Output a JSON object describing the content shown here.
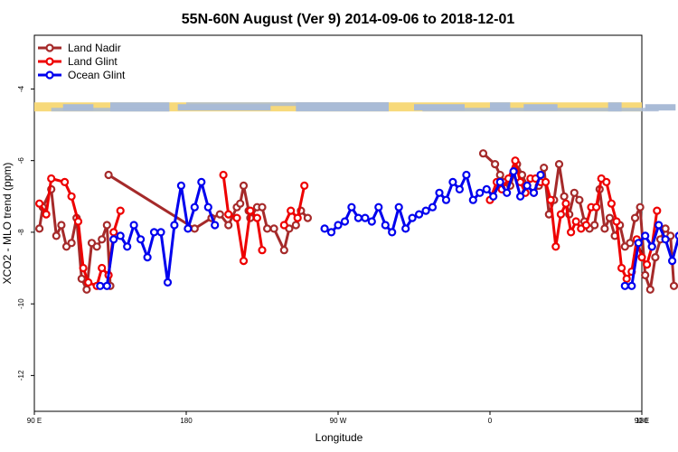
{
  "chart_data": {
    "type": "line",
    "title": "55N-60N August (Ver 9)   2014-09-06 to 2018-12-01",
    "xlabel": "Longitude",
    "ylabel": "XCO2 - MLO trend (ppm)",
    "xlim": [
      90,
      450
    ],
    "ylim": [
      -13,
      -2.5
    ],
    "x_ticks": [
      {
        "value": 90,
        "label": "90 E"
      },
      {
        "value": 180,
        "label": "180"
      },
      {
        "value": 270,
        "label": "90 W"
      },
      {
        "value": 360,
        "label": "0"
      },
      {
        "value": 450,
        "label": "90 E"
      },
      {
        "value": 540,
        "label": "180"
      }
    ],
    "y_ticks": [
      -4,
      -6,
      -8,
      -10,
      -12
    ],
    "legend_position": "top-left",
    "grid": false,
    "map_strip": {
      "y": -4.5,
      "land_color": "#f7d97a",
      "ocean_color": "#a9bbd6"
    },
    "series": [
      {
        "name": "Land Nadir",
        "color": "#a52a2a",
        "points": [
          [
            93,
            -7.9
          ],
          [
            95,
            -7.3
          ],
          [
            100,
            -6.8
          ],
          [
            103,
            -8.1
          ],
          [
            106,
            -7.8
          ],
          [
            109,
            -8.4
          ],
          [
            112,
            -8.3
          ],
          [
            115,
            -7.6
          ],
          [
            118,
            -9.3
          ],
          [
            121,
            -9.6
          ],
          [
            124,
            -8.3
          ],
          [
            127,
            -8.4
          ],
          [
            130,
            -8.2
          ],
          [
            133,
            -7.8
          ],
          [
            135,
            -9.5
          ],
          null,
          [
            134,
            -6.4
          ],
          [
            185,
            -7.9
          ],
          [
            195,
            -7.6
          ],
          [
            200,
            -7.5
          ],
          [
            205,
            -7.8
          ],
          [
            210,
            -7.3
          ],
          [
            212,
            -7.2
          ],
          [
            214,
            -6.7
          ],
          [
            217,
            -7.4
          ],
          [
            218,
            -7.6
          ],
          [
            222,
            -7.3
          ],
          [
            225,
            -7.3
          ],
          [
            228,
            -7.9
          ],
          [
            232,
            -7.9
          ],
          [
            238,
            -8.5
          ],
          [
            241,
            -7.9
          ],
          [
            245,
            -7.8
          ],
          [
            248,
            -7.4
          ],
          [
            252,
            -7.6
          ],
          null,
          [
            356,
            -5.8
          ],
          [
            363,
            -6.1
          ],
          [
            366,
            -6.4
          ],
          [
            369,
            -6.6
          ],
          [
            372,
            -6.7
          ],
          [
            376,
            -6.1
          ],
          [
            379,
            -6.4
          ],
          [
            382,
            -6.7
          ],
          [
            386,
            -6.9
          ],
          [
            389,
            -6.7
          ],
          [
            392,
            -6.2
          ],
          [
            395,
            -7.5
          ],
          [
            398,
            -7.1
          ],
          [
            401,
            -6.1
          ],
          [
            404,
            -7.0
          ],
          [
            407,
            -7.5
          ],
          [
            410,
            -6.9
          ],
          [
            413,
            -7.1
          ],
          [
            416,
            -7.7
          ],
          [
            419,
            -7.9
          ],
          [
            422,
            -7.8
          ],
          [
            425,
            -6.8
          ],
          [
            428,
            -7.9
          ],
          [
            431,
            -7.6
          ],
          [
            434,
            -8.1
          ],
          [
            437,
            -7.8
          ],
          [
            440,
            -8.4
          ],
          [
            443,
            -8.3
          ],
          [
            446,
            -7.6
          ],
          [
            449,
            -7.3
          ],
          [
            452,
            -9.2
          ],
          [
            455,
            -9.6
          ],
          [
            458,
            -8.7
          ],
          [
            461,
            -8.2
          ],
          [
            464,
            -7.9
          ],
          [
            467,
            -8.1
          ],
          [
            469,
            -9.5
          ]
        ]
      },
      {
        "name": "Land Glint",
        "color": "#ee0000",
        "points": [
          [
            93,
            -7.2
          ],
          [
            97,
            -7.5
          ],
          [
            100,
            -6.5
          ],
          [
            108,
            -6.6
          ],
          [
            112,
            -7.0
          ],
          [
            116,
            -7.7
          ],
          [
            119,
            -9.0
          ],
          [
            122,
            -9.4
          ],
          [
            127,
            -9.5
          ],
          [
            130,
            -9.0
          ],
          [
            134,
            -9.2
          ],
          [
            137,
            -8.0
          ],
          [
            141,
            -7.4
          ],
          [
            null,
            null
          ],
          [
            202,
            -6.4
          ],
          [
            205,
            -7.5
          ],
          [
            210,
            -7.6
          ],
          [
            214,
            -8.8
          ],
          [
            218,
            -7.4
          ],
          [
            222,
            -7.6
          ],
          [
            225,
            -8.5
          ],
          null,
          [
            238,
            -7.8
          ],
          [
            242,
            -7.4
          ],
          [
            246,
            -7.6
          ],
          [
            250,
            -6.7
          ],
          null,
          [
            360,
            -7.1
          ],
          [
            364,
            -6.6
          ],
          [
            367,
            -6.8
          ],
          [
            371,
            -6.5
          ],
          [
            375,
            -6.0
          ],
          [
            378,
            -6.6
          ],
          [
            381,
            -6.9
          ],
          [
            384,
            -6.5
          ],
          [
            387,
            -6.5
          ],
          [
            390,
            -6.6
          ],
          [
            393,
            -6.6
          ],
          [
            396,
            -7.1
          ],
          [
            399,
            -8.4
          ],
          [
            402,
            -7.5
          ],
          [
            405,
            -7.2
          ],
          [
            408,
            -8.0
          ],
          [
            411,
            -7.7
          ],
          [
            414,
            -7.9
          ],
          [
            417,
            -7.8
          ],
          [
            420,
            -7.3
          ],
          [
            423,
            -7.3
          ],
          [
            426,
            -6.5
          ],
          [
            429,
            -6.6
          ],
          [
            432,
            -7.2
          ],
          [
            435,
            -7.7
          ],
          [
            438,
            -9.0
          ],
          [
            441,
            -9.3
          ],
          [
            444,
            -9.1
          ],
          [
            447,
            -8.2
          ],
          [
            450,
            -8.7
          ],
          [
            453,
            -8.9
          ],
          [
            456,
            -8.4
          ],
          [
            459,
            -7.4
          ]
        ]
      },
      {
        "name": "Ocean Glint",
        "color": "#0000ee",
        "points": [
          [
            129,
            -9.5
          ],
          [
            133,
            -9.5
          ],
          [
            137,
            -8.2
          ],
          [
            141,
            -8.1
          ],
          [
            145,
            -8.4
          ],
          [
            149,
            -7.8
          ],
          [
            153,
            -8.2
          ],
          [
            157,
            -8.7
          ],
          [
            161,
            -8.0
          ],
          [
            165,
            -8.0
          ],
          [
            169,
            -9.4
          ],
          [
            173,
            -7.8
          ],
          [
            177,
            -6.7
          ],
          [
            181,
            -7.9
          ],
          [
            185,
            -7.3
          ],
          [
            189,
            -6.6
          ],
          [
            193,
            -7.3
          ],
          [
            197,
            -7.8
          ],
          null,
          [
            262,
            -7.9
          ],
          [
            266,
            -8.0
          ],
          [
            270,
            -7.8
          ],
          [
            274,
            -7.7
          ],
          [
            278,
            -7.3
          ],
          [
            282,
            -7.6
          ],
          [
            286,
            -7.6
          ],
          [
            290,
            -7.7
          ],
          [
            294,
            -7.3
          ],
          [
            298,
            -7.8
          ],
          [
            302,
            -8.0
          ],
          [
            306,
            -7.3
          ],
          [
            310,
            -7.9
          ],
          [
            314,
            -7.6
          ],
          [
            318,
            -7.5
          ],
          [
            322,
            -7.4
          ],
          [
            326,
            -7.3
          ],
          [
            330,
            -6.9
          ],
          [
            334,
            -7.1
          ],
          [
            338,
            -6.6
          ],
          [
            342,
            -6.8
          ],
          [
            346,
            -6.4
          ],
          [
            350,
            -7.1
          ],
          [
            354,
            -6.9
          ],
          [
            358,
            -6.8
          ],
          [
            362,
            -7.0
          ],
          [
            366,
            -6.6
          ],
          [
            370,
            -6.9
          ],
          [
            374,
            -6.3
          ],
          [
            378,
            -7.0
          ],
          [
            382,
            -6.7
          ],
          [
            386,
            -6.9
          ],
          [
            390,
            -6.4
          ],
          null,
          [
            440,
            -9.5
          ],
          [
            444,
            -9.5
          ],
          [
            448,
            -8.3
          ],
          [
            452,
            -8.1
          ],
          [
            456,
            -8.4
          ],
          [
            460,
            -7.8
          ],
          [
            464,
            -8.2
          ],
          [
            468,
            -8.8
          ],
          [
            472,
            -8.1
          ]
        ]
      }
    ]
  }
}
